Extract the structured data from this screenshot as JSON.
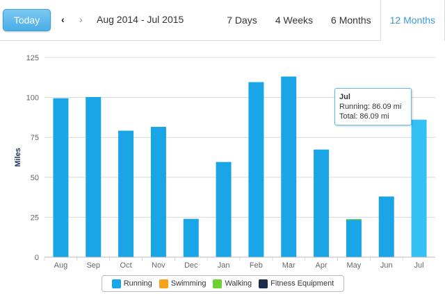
{
  "toolbar": {
    "today_label": "Today",
    "prev_icon": "‹",
    "next_icon": "›",
    "range_label": "Aug 2014 - Jul 2015"
  },
  "tabs": [
    {
      "label": "7 Days",
      "active": false
    },
    {
      "label": "4 Weeks",
      "active": false
    },
    {
      "label": "6 Months",
      "active": false
    },
    {
      "label": "12 Months",
      "active": true
    }
  ],
  "tooltip": {
    "title": "Jul",
    "line1": "Running: 86.09 mi",
    "line2": "Total: 86.09 mi"
  },
  "colors": {
    "running": "#1aa6e6",
    "running_highlight": "#33c1f5",
    "swimming": "#f7a21b",
    "walking": "#6ed12f",
    "fitness": "#1c2e4a",
    "grid": "#d8d8d8",
    "axis_text": "#666666"
  },
  "chart_data": {
    "type": "bar",
    "ylabel": "Miles",
    "ylim": [
      0,
      125
    ],
    "yticks": [
      0,
      25,
      50,
      75,
      100,
      125
    ],
    "grid": true,
    "legend_placement": "bottom-center",
    "categories": [
      "Aug",
      "Sep",
      "Oct",
      "Nov",
      "Dec",
      "Jan",
      "Feb",
      "Mar",
      "Apr",
      "May",
      "Jun",
      "Jul"
    ],
    "highlighted_category": "Jul",
    "series": [
      {
        "name": "Running",
        "values": [
          99.5,
          100.3,
          79.2,
          81.6,
          24.0,
          59.6,
          109.6,
          113.1,
          67.4,
          23.4,
          38.0,
          86.09
        ]
      },
      {
        "name": "Swimming",
        "values": [
          0,
          0,
          0,
          0,
          0,
          0,
          0,
          0,
          0,
          0,
          0,
          0
        ]
      },
      {
        "name": "Walking",
        "values": [
          0,
          0,
          0,
          0,
          0,
          0,
          0,
          0,
          0,
          0.5,
          0,
          0
        ]
      },
      {
        "name": "Fitness Equipment",
        "values": [
          0,
          0,
          0,
          0,
          0,
          0,
          0,
          0,
          0,
          0,
          0,
          0
        ]
      }
    ]
  }
}
